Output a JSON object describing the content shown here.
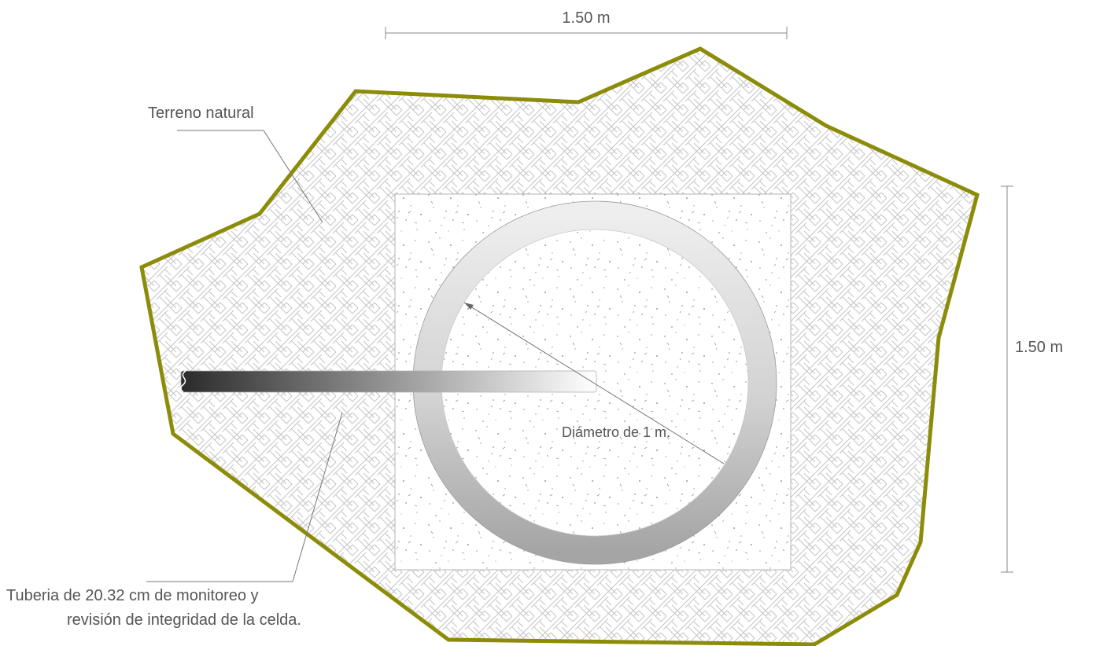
{
  "dimensions": {
    "horizontal": "1.50 m",
    "vertical": "1.50 m"
  },
  "labels": {
    "terrain": "Terreno natural",
    "diameter": "Diámetro de 1 m.",
    "pipe_line1": "Tuberia de 20.32 cm de monitoreo y",
    "pipe_line2": "revisión de integridad de la celda."
  },
  "colors": {
    "boundary": "#8c8c0a",
    "hatch": "#c9c9c9",
    "dimension_line": "#888888",
    "text": "#555555",
    "leader": "#777777"
  }
}
